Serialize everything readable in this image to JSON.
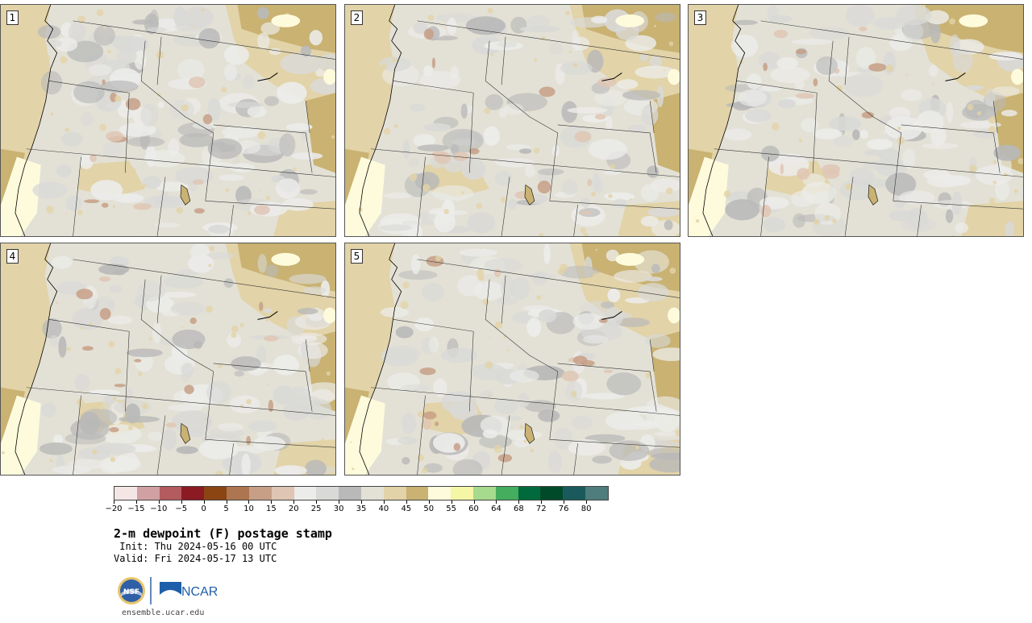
{
  "figure": {
    "title": "2-m dewpoint (F) postage stamp",
    "init": " Init: Thu 2024-05-16 00 UTC",
    "valid": "Valid: Fri 2024-05-17 13 UTC",
    "url": "ensemble.ucar.edu"
  },
  "logos": {
    "ncar_label": "NCAR",
    "nsf_label": "NSF"
  },
  "panels": [
    {
      "label": "1"
    },
    {
      "label": "2"
    },
    {
      "label": "3"
    },
    {
      "label": "4"
    },
    {
      "label": "5"
    }
  ],
  "colorbar": {
    "colors": [
      "#f3e6e4",
      "#d1a0a3",
      "#b35b5f",
      "#8b1a22",
      "#8b4513",
      "#ad7650",
      "#c79f86",
      "#dfc5b4",
      "#ececea",
      "#d9d9d7",
      "#b9b9b9",
      "#e3e1d6",
      "#e2d3a8",
      "#c9b272",
      "#fdfbdc",
      "#f5f6a6",
      "#a6da8c",
      "#44ad5e",
      "#006a3c",
      "#004a2a",
      "#1b5a5c",
      "#4f7c7c"
    ],
    "ticks": [
      "−20",
      "−15",
      "−10",
      "−5",
      "0",
      "5",
      "10",
      "15",
      "20",
      "25",
      "30",
      "35",
      "40",
      "45",
      "50",
      "55",
      "60",
      "64",
      "68",
      "72",
      "76",
      "80"
    ]
  }
}
